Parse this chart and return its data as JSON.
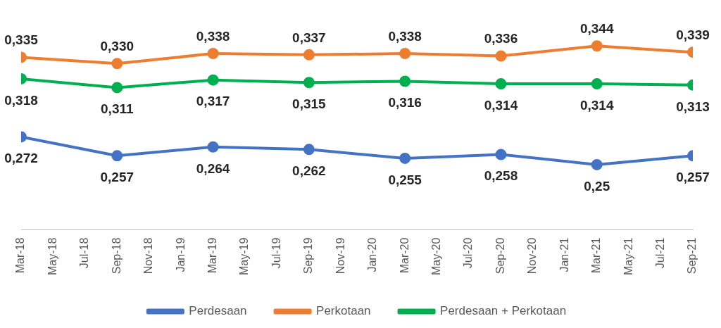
{
  "chart_data": {
    "type": "line",
    "x": [
      "2018-03",
      "2018-09",
      "2019-03",
      "2019-09",
      "2020-03",
      "2020-09",
      "2021-03",
      "2021-09"
    ],
    "xlim": [
      "2018-03",
      "2021-09"
    ],
    "xticks": [
      {
        "value": "2018-03",
        "label": "Mar-18"
      },
      {
        "value": "2018-05",
        "label": "May-18"
      },
      {
        "value": "2018-07",
        "label": "Jul-18"
      },
      {
        "value": "2018-09",
        "label": "Sep-18"
      },
      {
        "value": "2018-11",
        "label": "Nov-18"
      },
      {
        "value": "2019-01",
        "label": "Jan-19"
      },
      {
        "value": "2019-03",
        "label": "Mar-19"
      },
      {
        "value": "2019-05",
        "label": "May-19"
      },
      {
        "value": "2019-07",
        "label": "Jul-19"
      },
      {
        "value": "2019-09",
        "label": "Sep-19"
      },
      {
        "value": "2019-11",
        "label": "Nov-19"
      },
      {
        "value": "2020-01",
        "label": "Jan-20"
      },
      {
        "value": "2020-03",
        "label": "Mar-20"
      },
      {
        "value": "2020-05",
        "label": "May-20"
      },
      {
        "value": "2020-07",
        "label": "Jul-20"
      },
      {
        "value": "2020-09",
        "label": "Sep-20"
      },
      {
        "value": "2020-11",
        "label": "Nov-20"
      },
      {
        "value": "2021-01",
        "label": "Jan-21"
      },
      {
        "value": "2021-03",
        "label": "Mar-21"
      },
      {
        "value": "2021-05",
        "label": "May-21"
      },
      {
        "value": "2021-07",
        "label": "Jul-21"
      },
      {
        "value": "2021-09",
        "label": "Sep-21"
      }
    ],
    "series": [
      {
        "name": "Perdesaan",
        "color": "#4472c4",
        "values": [
          0.272,
          0.257,
          0.264,
          0.262,
          0.255,
          0.258,
          0.25,
          0.257
        ],
        "value_labels": [
          "0,272",
          "0,257",
          "0,264",
          "0,262",
          "0,255",
          "0,258",
          "0,25",
          "0,257"
        ]
      },
      {
        "name": "Perkotaan",
        "color": "#ed7d31",
        "values": [
          0.335,
          0.33,
          0.338,
          0.337,
          0.338,
          0.336,
          0.344,
          0.339
        ],
        "value_labels": [
          "0,335",
          "0,330",
          "0,338",
          "0,337",
          "0,338",
          "0,336",
          "0,344",
          "0,339"
        ]
      },
      {
        "name": "Perdesaan + Perkotaan",
        "color": "#00b050",
        "values": [
          0.318,
          0.311,
          0.317,
          0.315,
          0.316,
          0.314,
          0.314,
          0.313
        ],
        "value_labels": [
          "0,318",
          "0,311",
          "0,317",
          "0,315",
          "0,316",
          "0,314",
          "0,314",
          "0,313"
        ]
      }
    ],
    "marker": "circle",
    "grid": false,
    "legend": "bottom",
    "tick_labels": "x"
  }
}
